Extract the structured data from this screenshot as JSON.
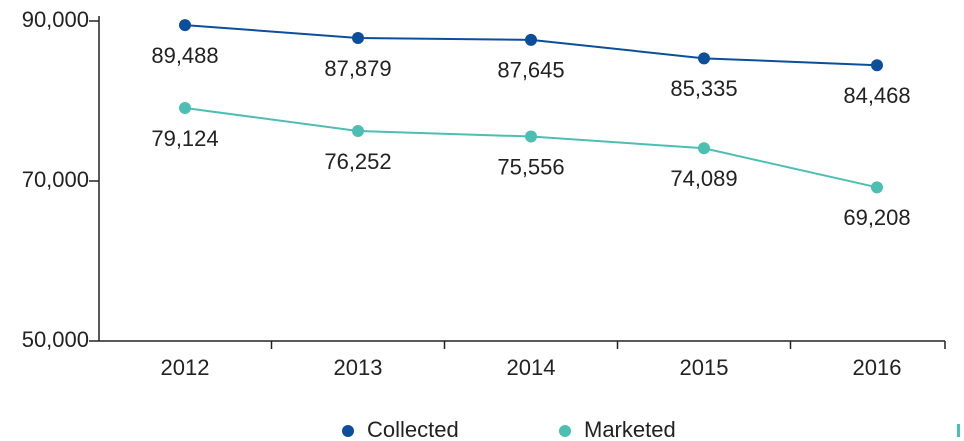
{
  "chart_data": {
    "type": "line",
    "categories": [
      "2012",
      "2013",
      "2014",
      "2015",
      "2016"
    ],
    "series": [
      {
        "name": "Collected",
        "color": "#0b4f9c",
        "values": [
          89488,
          87879,
          87645,
          85335,
          84468
        ],
        "value_labels": [
          "89,488",
          "87,879",
          "87,645",
          "85,335",
          "84,468"
        ]
      },
      {
        "name": "Marketed",
        "color": "#4cbfb3",
        "values": [
          79124,
          76252,
          75556,
          74089,
          69208
        ],
        "value_labels": [
          "79,124",
          "76,252",
          "75,556",
          "74,089",
          "69,208"
        ]
      }
    ],
    "ylim": [
      50000,
      90000
    ],
    "yticks": [
      {
        "value": 50000,
        "label": "50,000"
      },
      {
        "value": 70000,
        "label": "70,000"
      },
      {
        "value": 90000,
        "label": "90,000"
      }
    ],
    "legend": "bottom"
  }
}
